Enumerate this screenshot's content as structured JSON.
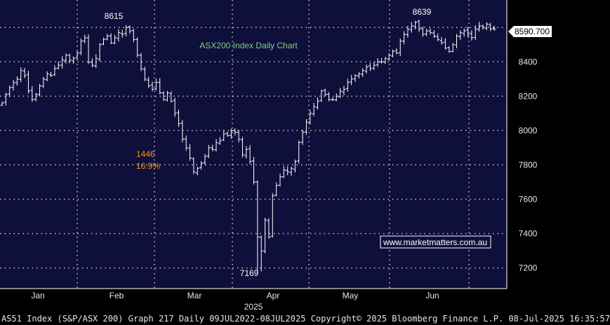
{
  "footer": "AS51 Index (S&P/ASX 200) Graph 217  Daily 09JUL2022-08JUL2025 Copyright© 2025 Bloomberg Finance L.P. 08-Jul-2025 16:35:57",
  "colors": {
    "plot_bg": "#0f0f3c",
    "bars": "#ffffff",
    "grid": "#c8c8c8",
    "title": "#7fd27f",
    "drawdown": "#f0961e",
    "watermark_border": "#ffffff"
  },
  "chart_data": {
    "type": "ohlc",
    "title": "ASX200 Index Daily Chart",
    "watermark": "www.marketmatters.com.au",
    "year_label": "2025",
    "month_labels": [
      "Jan",
      "Feb",
      "Mar",
      "Apr",
      "May",
      "Jun"
    ],
    "y_ticks": [
      7200,
      7400,
      7600,
      7800,
      8000,
      8200,
      8400
    ],
    "ylim": [
      7080,
      8760
    ],
    "grid": true,
    "last_price": "8590.700",
    "annotations": {
      "peak_feb": "8615",
      "peak_jun": "8639",
      "low_apr": "7169",
      "drawdown_points": "1446",
      "drawdown_pct": "16.9%"
    },
    "closes": [
      8160,
      8210,
      8250,
      8280,
      8300,
      8350,
      8320,
      8230,
      8180,
      8210,
      8260,
      8300,
      8330,
      8320,
      8360,
      8380,
      8410,
      8440,
      8410,
      8420,
      8450,
      8520,
      8540,
      8400,
      8380,
      8420,
      8500,
      8530,
      8550,
      8510,
      8540,
      8570,
      8560,
      8600,
      8580,
      8530,
      8440,
      8360,
      8300,
      8260,
      8240,
      8280,
      8220,
      8180,
      8220,
      8170,
      8100,
      8040,
      7950,
      7900,
      7840,
      7760,
      7780,
      7810,
      7850,
      7900,
      7890,
      7930,
      7940,
      7980,
      7970,
      8000,
      7990,
      7950,
      7860,
      7890,
      7820,
      7700,
      7380,
      7300,
      7480,
      7380,
      7620,
      7680,
      7730,
      7770,
      7760,
      7780,
      7820,
      7930,
      7990,
      8050,
      8100,
      8140,
      8170,
      8230,
      8210,
      8180,
      8180,
      8200,
      8230,
      8240,
      8280,
      8300,
      8320,
      8330,
      8350,
      8370,
      8360,
      8380,
      8400,
      8400,
      8420,
      8440,
      8460,
      8450,
      8520,
      8560,
      8590,
      8610,
      8630,
      8590,
      8560,
      8580,
      8570,
      8550,
      8530,
      8510,
      8480,
      8460,
      8500,
      8550,
      8570,
      8580,
      8560,
      8540,
      8590,
      8610,
      8600,
      8620,
      8590,
      8590
    ]
  }
}
